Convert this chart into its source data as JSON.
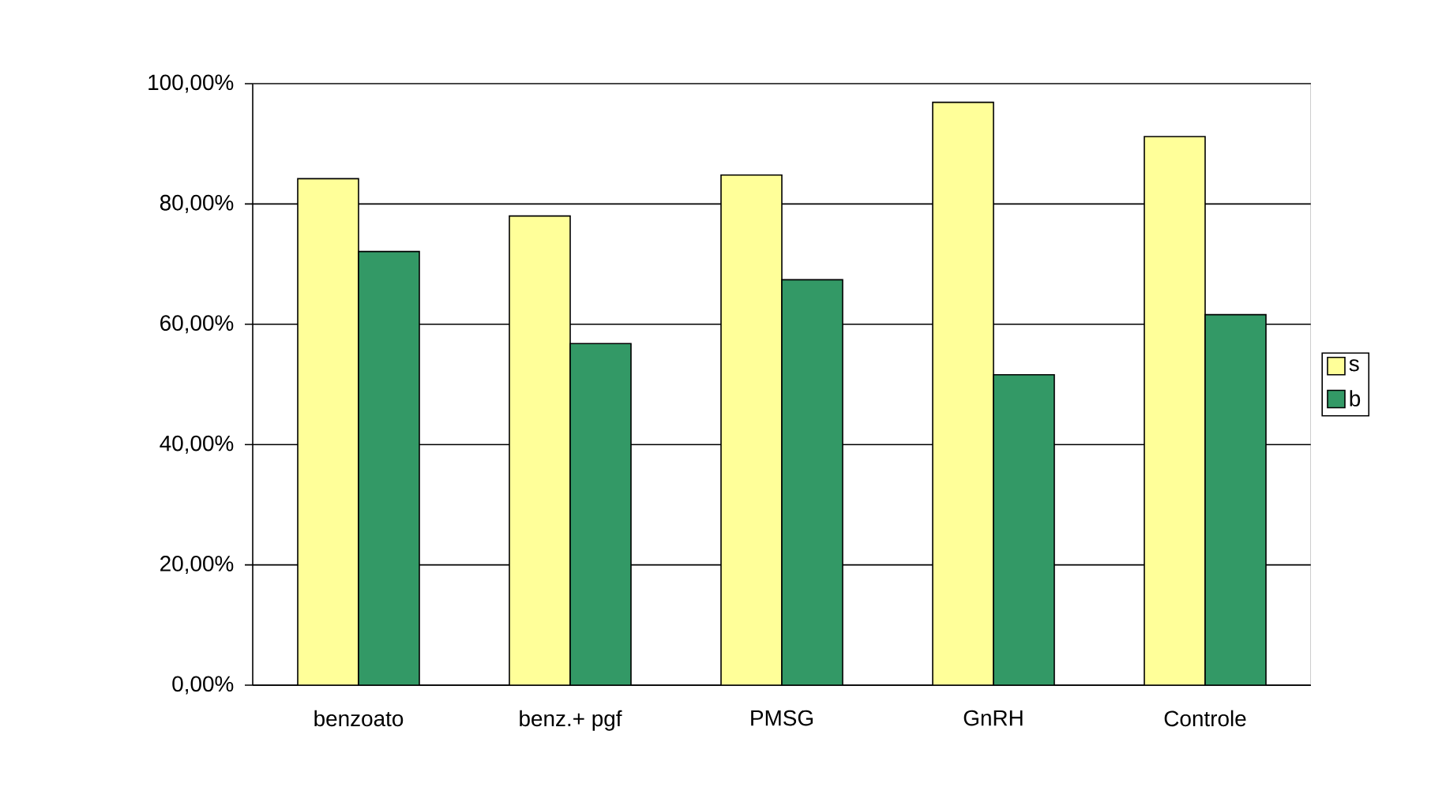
{
  "chart_data": {
    "type": "bar",
    "categories": [
      "benzoato",
      "benz.+ pgf",
      "PMSG",
      "GnRH",
      "Controle"
    ],
    "series": [
      {
        "name": "s",
        "color": "#ffff99",
        "values": [
          84.2,
          78,
          84.8,
          96.9,
          91.2
        ]
      },
      {
        "name": "b",
        "color": "#339966",
        "values": [
          72.1,
          56.8,
          67.4,
          51.6,
          61.6
        ]
      }
    ],
    "ylim": [
      0,
      100
    ],
    "yticks": [
      {
        "value": 0,
        "label": "0,00%"
      },
      {
        "value": 20,
        "label": "20,00%"
      },
      {
        "value": 40,
        "label": "40,00%"
      },
      {
        "value": 60,
        "label": "60,00%"
      },
      {
        "value": 80,
        "label": "80,00%"
      },
      {
        "value": 100,
        "label": "100,00%"
      }
    ],
    "grid": "y",
    "legend": "right"
  }
}
